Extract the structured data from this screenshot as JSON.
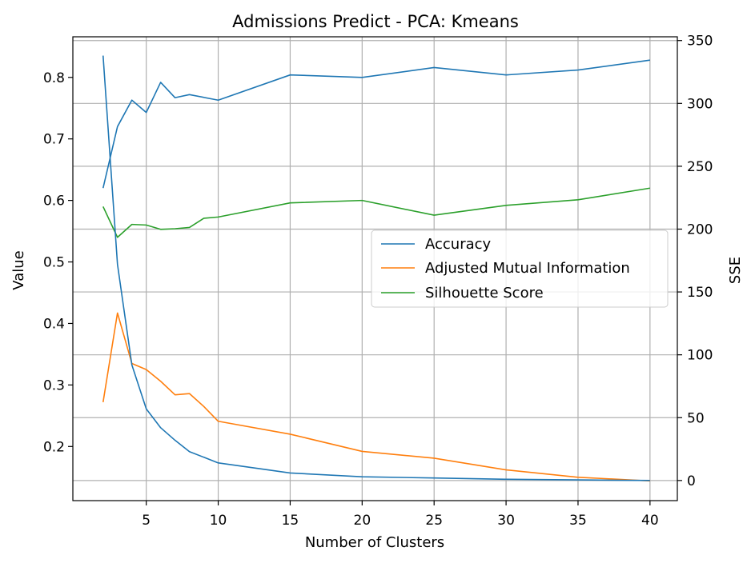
{
  "chart_data": {
    "type": "line",
    "title": "Admissions Predict - PCA: Kmeans",
    "xlabel": "Number of Clusters",
    "ylabel": "Value",
    "y2label": "SSE",
    "xlim": [
      -0.1,
      41.9
    ],
    "ylim": [
      0.112,
      0.866
    ],
    "y2lim": [
      -16,
      353
    ],
    "x_ticks": [
      5,
      10,
      15,
      20,
      25,
      30,
      35,
      40
    ],
    "y_ticks": [
      0.2,
      0.3,
      0.4,
      0.5,
      0.6,
      0.7,
      0.8
    ],
    "y2_ticks": [
      0,
      50,
      100,
      150,
      200,
      250,
      300,
      350
    ],
    "grid": true,
    "legend_position": "center-right",
    "series": [
      {
        "name": "Accuracy",
        "axis": "left",
        "color": "#1f77b4",
        "x": [
          2,
          3,
          4,
          5,
          6,
          7,
          8,
          10,
          15,
          20,
          25,
          30,
          35,
          40
        ],
        "values": [
          0.62,
          0.72,
          0.763,
          0.743,
          0.792,
          0.767,
          0.772,
          0.763,
          0.804,
          0.8,
          0.816,
          0.804,
          0.812,
          0.828
        ]
      },
      {
        "name": "Adjusted Mutual Information",
        "axis": "left",
        "color": "#ff7f0e",
        "x": [
          2,
          3,
          4,
          5,
          6,
          7,
          8,
          9,
          10,
          15,
          20,
          25,
          30,
          35,
          40
        ],
        "values": [
          0.272,
          0.417,
          0.335,
          0.325,
          0.306,
          0.284,
          0.286,
          0.265,
          0.241,
          0.22,
          0.192,
          0.181,
          0.162,
          0.15,
          0.144
        ]
      },
      {
        "name": "Silhouette Score",
        "axis": "left",
        "color": "#2ca02c",
        "x": [
          2,
          3,
          4,
          5,
          6,
          7,
          8,
          9,
          10,
          15,
          20,
          25,
          30,
          35,
          40
        ],
        "values": [
          0.59,
          0.54,
          0.561,
          0.56,
          0.553,
          0.554,
          0.556,
          0.571,
          0.573,
          0.596,
          0.6,
          0.576,
          0.592,
          0.601,
          0.62
        ]
      },
      {
        "axis": "right",
        "color": "#1f77b4",
        "x": [
          2,
          3,
          4,
          5,
          6,
          7,
          8,
          10,
          15,
          20,
          25,
          30,
          35,
          40
        ],
        "values": [
          338,
          172,
          92,
          57,
          42,
          32,
          23,
          14,
          6,
          3,
          2,
          1,
          0.5,
          0
        ]
      }
    ]
  }
}
